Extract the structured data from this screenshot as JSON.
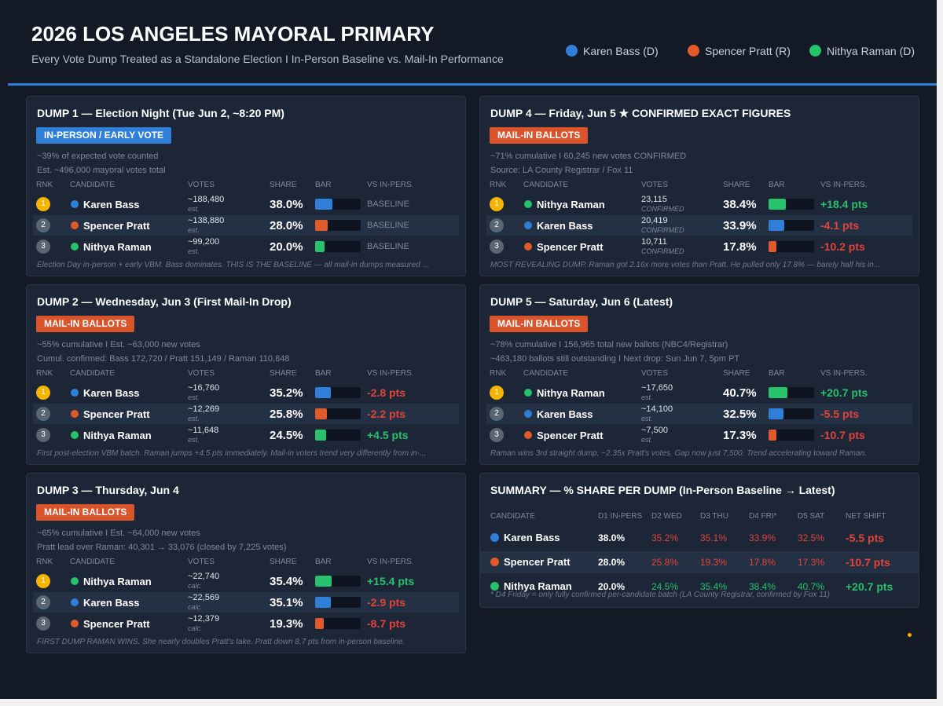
{
  "header": {
    "title": "2026 LOS ANGELES MAYORAL PRIMARY",
    "subtitle": "Every Vote Dump Treated as a Standalone Election  I  In-Person Baseline vs. Mail-In Performance",
    "legend": [
      {
        "name": "Karen Bass (D)",
        "color": "#2f7fd8"
      },
      {
        "name": "Spencer Pratt (R)",
        "color": "#e05a2b"
      },
      {
        "name": "Nithya Raman (D)",
        "color": "#27c26b"
      }
    ]
  },
  "dumps": [
    {
      "title": "DUMP 1 — Election Night (Tue Jun 2, ~8:20 PM)",
      "badge": "IN-PERSON / EARLY VOTE",
      "badge_color": "#2f7fd8",
      "info": [
        "~39% of expected vote counted",
        "Est. ~496,000 mayoral votes total"
      ],
      "columns": [
        "RNK",
        "CANDIDATE",
        "VOTES",
        "SHARE",
        "BAR",
        "VS IN-PERS."
      ],
      "rows": [
        {
          "rank": "1",
          "candidate": "Karen Bass",
          "color": "#2f7fd8",
          "votes": "~188,480",
          "votes_note": "est.",
          "share": 38.0,
          "share_label": "38.0%",
          "vs": "BASELINE"
        },
        {
          "rank": "2",
          "candidate": "Spencer Pratt",
          "color": "#e05a2b",
          "votes": "~138,880",
          "votes_note": "est.",
          "share": 28.0,
          "share_label": "28.0%",
          "vs": "BASELINE"
        },
        {
          "rank": "3",
          "candidate": "Nithya Raman",
          "color": "#27c26b",
          "votes": "~99,200",
          "votes_note": "est.",
          "share": 20.0,
          "share_label": "20.0%",
          "vs": "BASELINE"
        }
      ],
      "note": "Election Day in-person + early VBM. Bass dominates. THIS IS THE BASELINE — all mail-in dumps measured ..."
    },
    {
      "title": "DUMP 2 — Wednesday, Jun 3 (First Mail-In Drop)",
      "badge": "MAIL-IN BALLOTS",
      "badge_color": "#d9542b",
      "info": [
        "~55% cumulative  I  Est. ~63,000 new votes",
        "Cumul. confirmed: Bass 172,720 / Pratt 151,149 / Raman 110,848"
      ],
      "columns": [
        "RNK",
        "CANDIDATE",
        "VOTES",
        "SHARE",
        "BAR",
        "VS IN-PERS."
      ],
      "rows": [
        {
          "rank": "1",
          "candidate": "Karen Bass",
          "color": "#2f7fd8",
          "votes": "~16,760",
          "votes_note": "est.",
          "share": 35.2,
          "share_label": "35.2%",
          "vs": "-2.8 pts"
        },
        {
          "rank": "2",
          "candidate": "Spencer Pratt",
          "color": "#e05a2b",
          "votes": "~12,269",
          "votes_note": "est.",
          "share": 25.8,
          "share_label": "25.8%",
          "vs": "-2.2 pts"
        },
        {
          "rank": "3",
          "candidate": "Nithya Raman",
          "color": "#27c26b",
          "votes": "~11,648",
          "votes_note": "est.",
          "share": 24.5,
          "share_label": "24.5%",
          "vs": "+4.5 pts"
        }
      ],
      "note": "First post-election VBM batch. Raman jumps +4.5 pts immediately. Mail-in voters trend very differently from in-..."
    },
    {
      "title": "DUMP 3 — Thursday, Jun 4",
      "badge": "MAIL-IN BALLOTS",
      "badge_color": "#d9542b",
      "info": [
        "~65% cumulative  I  Est. ~64,000 new votes",
        "Pratt lead over Raman: 40,301 → 33,076  (closed by 7,225 votes)"
      ],
      "columns": [
        "RNK",
        "CANDIDATE",
        "VOTES",
        "SHARE",
        "BAR",
        "VS IN-PERS."
      ],
      "rows": [
        {
          "rank": "1",
          "candidate": "Nithya Raman",
          "color": "#27c26b",
          "votes": "~22,740",
          "votes_note": "calc.",
          "share": 35.4,
          "share_label": "35.4%",
          "vs": "+15.4 pts"
        },
        {
          "rank": "2",
          "candidate": "Karen Bass",
          "color": "#2f7fd8",
          "votes": "~22,569",
          "votes_note": "calc.",
          "share": 35.1,
          "share_label": "35.1%",
          "vs": "-2.9 pts"
        },
        {
          "rank": "3",
          "candidate": "Spencer Pratt",
          "color": "#e05a2b",
          "votes": "~12,379",
          "votes_note": "calc.",
          "share": 19.3,
          "share_label": "19.3%",
          "vs": "-8.7 pts"
        }
      ],
      "note": "FIRST DUMP RAMAN WINS. She nearly doubles Pratt's take. Pratt down 8.7 pts from in-person baseline."
    },
    {
      "title": "DUMP 4 — Friday, Jun 5  ★ CONFIRMED EXACT FIGURES",
      "badge": "MAIL-IN BALLOTS",
      "badge_color": "#d9542b",
      "info": [
        "~71% cumulative  I  60,245 new votes CONFIRMED",
        "Source: LA County Registrar / Fox 11"
      ],
      "columns": [
        "RNK",
        "CANDIDATE",
        "VOTES",
        "SHARE",
        "BAR",
        "VS IN-PERS."
      ],
      "rows": [
        {
          "rank": "1",
          "candidate": "Nithya Raman",
          "color": "#27c26b",
          "votes": "23,115",
          "votes_note": "CONFIRMED",
          "share": 38.4,
          "share_label": "38.4%",
          "vs": "+18.4 pts"
        },
        {
          "rank": "2",
          "candidate": "Karen Bass",
          "color": "#2f7fd8",
          "votes": "20,419",
          "votes_note": "CONFIRMED",
          "share": 33.9,
          "share_label": "33.9%",
          "vs": "-4.1 pts"
        },
        {
          "rank": "3",
          "candidate": "Spencer Pratt",
          "color": "#e05a2b",
          "votes": "10,711",
          "votes_note": "CONFIRMED",
          "share": 17.8,
          "share_label": "17.8%",
          "vs": "-10.2 pts"
        }
      ],
      "note": "MOST REVEALING DUMP. Raman got 2.16x more votes than Pratt. He pulled only 17.8% — barely half his in..."
    },
    {
      "title": "DUMP 5 — Saturday, Jun 6  (Latest)",
      "badge": "MAIL-IN BALLOTS",
      "badge_color": "#d9542b",
      "info": [
        "~78% cumulative  I  156,965 total new ballots (NBC4/Registrar)",
        "~463,180 ballots still outstanding  I  Next drop: Sun Jun 7, 5pm PT"
      ],
      "columns": [
        "RNK",
        "CANDIDATE",
        "VOTES",
        "SHARE",
        "BAR",
        "VS IN-PERS."
      ],
      "rows": [
        {
          "rank": "1",
          "candidate": "Nithya Raman",
          "color": "#27c26b",
          "votes": "~17,650",
          "votes_note": "est.",
          "share": 40.7,
          "share_label": "40.7%",
          "vs": "+20.7 pts"
        },
        {
          "rank": "2",
          "candidate": "Karen Bass",
          "color": "#2f7fd8",
          "votes": "~14,100",
          "votes_note": "est.",
          "share": 32.5,
          "share_label": "32.5%",
          "vs": "-5.5 pts"
        },
        {
          "rank": "3",
          "candidate": "Spencer Pratt",
          "color": "#e05a2b",
          "votes": "~7,500",
          "votes_note": "est.",
          "share": 17.3,
          "share_label": "17.3%",
          "vs": "-10.7 pts"
        }
      ],
      "note": "Raman wins 3rd straight dump, ~2.35x Pratt's votes. Gap now just 7,500. Trend accelerating toward Raman."
    }
  ],
  "summary": {
    "title": "SUMMARY — % SHARE PER DUMP  (In-Person Baseline → Latest)",
    "columns": [
      "CANDIDATE",
      "D1 IN-PERS",
      "D2 WED",
      "D3 THU",
      "D4 FRI*",
      "D5 SAT",
      "NET SHIFT"
    ],
    "rows": [
      {
        "candidate": "Karen Bass",
        "color": "#2f7fd8",
        "delta_color": "#e0443a",
        "cells": [
          "38.0%",
          "35.2%",
          "35.1%",
          "33.9%",
          "32.5%"
        ],
        "net": "-5.5 pts"
      },
      {
        "candidate": "Spencer Pratt",
        "color": "#e05a2b",
        "delta_color": "#e0443a",
        "cells": [
          "28.0%",
          "25.8%",
          "19.3%",
          "17.8%",
          "17.3%"
        ],
        "net": "-10.7 pts"
      },
      {
        "candidate": "Nithya Raman",
        "color": "#27c26b",
        "delta_color": "#27c26b",
        "cells": [
          "20.0%",
          "24.5%",
          "35.4%",
          "38.4%",
          "40.7%"
        ],
        "net": "+20.7 pts"
      }
    ],
    "footnote": "* D4 Friday = only fully confirmed per-candidate batch (LA County Registrar, confirmed by Fox 11)"
  }
}
